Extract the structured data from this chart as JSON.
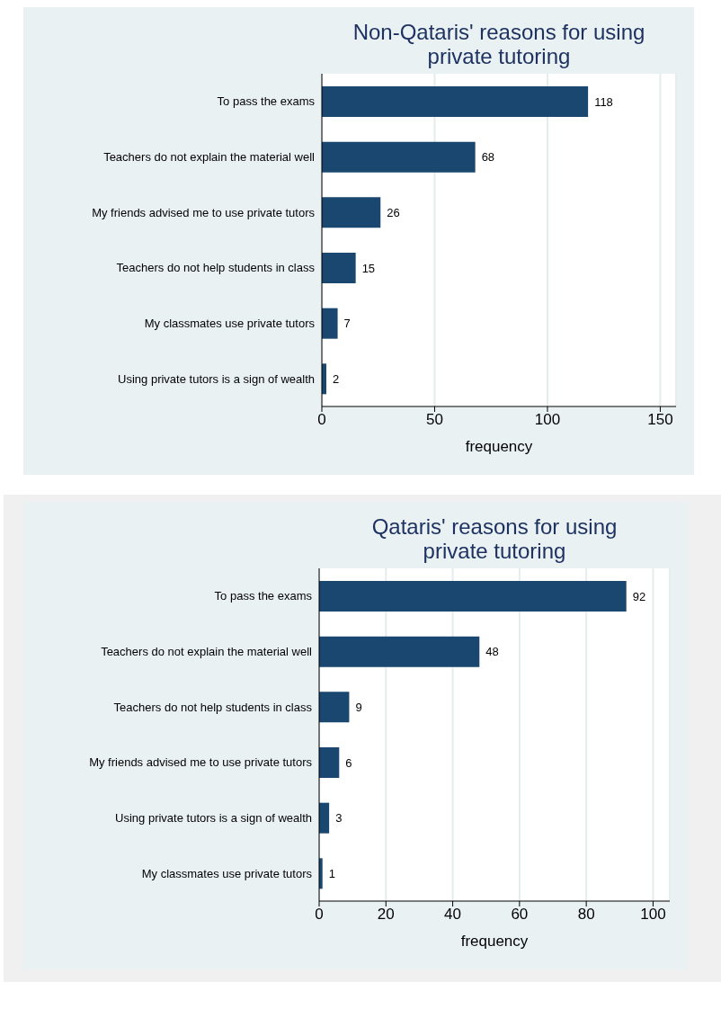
{
  "chart_data": [
    {
      "type": "bar",
      "orientation": "horizontal",
      "title": "Non-Qataris' reasons for using private tutoring",
      "xlabel": "frequency",
      "categories": [
        "To pass the exams",
        "Teachers do not explain the material well",
        "My friends advised me to use private tutors",
        "Teachers do not help students in class",
        "My classmates use private tutors",
        "Using private tutors is a sign of wealth"
      ],
      "values": [
        118,
        68,
        26,
        15,
        7,
        2
      ],
      "color": "#1a4770",
      "xlim": [
        0,
        157
      ],
      "xticks": [
        0,
        50,
        100,
        150
      ],
      "grid": "x",
      "data_labels": true
    },
    {
      "type": "bar",
      "orientation": "horizontal",
      "title": "Qataris' reasons for using private tutoring",
      "xlabel": "frequency",
      "categories": [
        "To pass the exams",
        "Teachers do not explain the material well",
        "Teachers do not help students in class",
        "My friends advised me to use private tutors",
        "Using private tutors is a sign of wealth",
        "My classmates use private tutors"
      ],
      "values": [
        92,
        48,
        9,
        6,
        3,
        1
      ],
      "color": "#1a4770",
      "xlim": [
        0,
        105
      ],
      "xticks": [
        0,
        20,
        40,
        60,
        80,
        100
      ],
      "grid": "x",
      "data_labels": true
    }
  ]
}
